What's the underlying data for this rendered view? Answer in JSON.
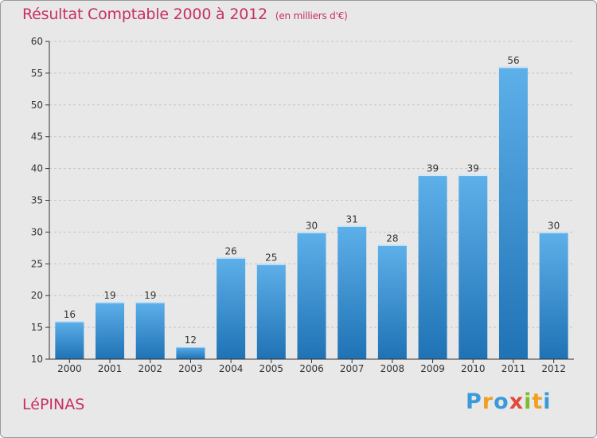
{
  "header": {
    "title": "Résultat Comptable 2000 à 2012",
    "subtitle": "(en milliers d'€)"
  },
  "footer": {
    "place": "LéPINAS",
    "logo_letters": [
      "P",
      "r",
      "o",
      "x",
      "i",
      "t",
      "i"
    ],
    "logo_colors": [
      "#3b9ad9",
      "#f0a020",
      "#3b9ad9",
      "#e0493d",
      "#7cbc2f",
      "#f0a020",
      "#3b9ad9"
    ]
  },
  "colors": {
    "title": "#c8305f",
    "bar_top": "#5eb0ea",
    "bar_bottom": "#1f72b4",
    "axis": "#333333",
    "grid": "#c4c4c4",
    "plot_bg": "#e8e8e8"
  },
  "chart_data": {
    "type": "bar",
    "title": "Résultat Comptable 2000 à 2012",
    "subtitle": "(en milliers d'€)",
    "categories": [
      "2000",
      "2001",
      "2002",
      "2003",
      "2004",
      "2005",
      "2006",
      "2007",
      "2008",
      "2009",
      "2010",
      "2011",
      "2012"
    ],
    "values": [
      16,
      19,
      19,
      12,
      26,
      25,
      30,
      31,
      28,
      39,
      39,
      56,
      30
    ],
    "ylim": [
      10,
      60
    ],
    "yticks": [
      10,
      15,
      20,
      25,
      30,
      35,
      40,
      45,
      50,
      55,
      60
    ],
    "grid": true,
    "data_labels": true
  }
}
